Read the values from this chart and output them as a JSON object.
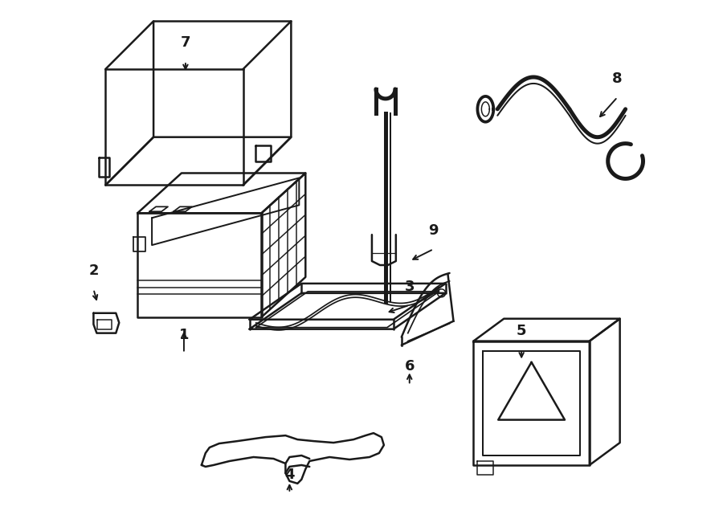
{
  "background_color": "#ffffff",
  "line_color": "#1a1a1a",
  "line_width": 1.8,
  "fig_w": 9.0,
  "fig_h": 6.61,
  "dpi": 100
}
